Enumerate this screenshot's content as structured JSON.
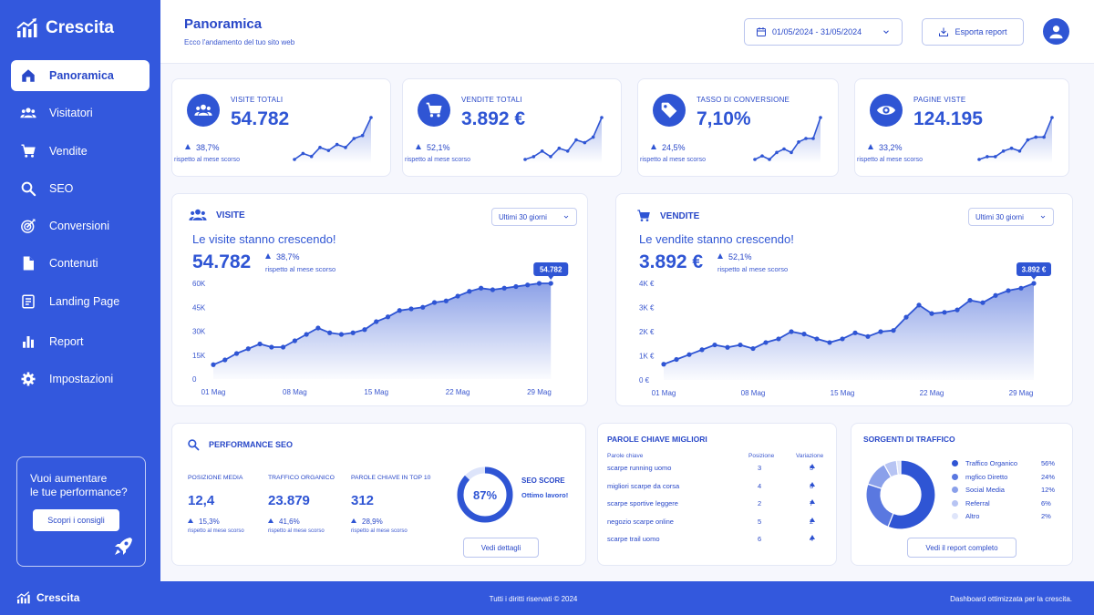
{
  "brand": {
    "name": "Crescita"
  },
  "sidebar": {
    "items": [
      {
        "label": "Panoramica",
        "icon": "home-icon",
        "active": true
      },
      {
        "label": "Visitatori",
        "icon": "users-icon"
      },
      {
        "label": "Vendite",
        "icon": "cart-icon"
      },
      {
        "label": "SEO",
        "icon": "search-icon"
      },
      {
        "label": "Conversioni",
        "icon": "target-icon"
      },
      {
        "label": "Contenuti",
        "icon": "document-icon"
      },
      {
        "label": "Landing Page",
        "icon": "page-list-icon"
      },
      {
        "label": "Report",
        "icon": "bar-chart-icon"
      },
      {
        "label": "Impostazioni",
        "icon": "gear-icon"
      }
    ],
    "promo": {
      "line1": "Vuoi aumentare",
      "line2": "le tue performance?",
      "button": "Scopri i consigli"
    }
  },
  "header": {
    "title": "Panoramica",
    "subtitle": "Ecco l'andamento del tuo sito web",
    "date_range": "01/05/2024 - 31/05/2024",
    "export": "Esporta report"
  },
  "kpis": [
    {
      "label": "VISITE TOTALI",
      "value": "54.782",
      "change": "38,7%",
      "compare": "rispetto al mese scorso",
      "icon": "users-icon",
      "trend": [
        2,
        4,
        3,
        6,
        5,
        7,
        6,
        9,
        10,
        16
      ]
    },
    {
      "label": "VENDITE TOTALI",
      "value": "3.892 €",
      "change": "52,1%",
      "compare": "rispetto al mese scorso",
      "icon": "cart-icon",
      "trend": [
        2,
        3,
        5,
        3,
        6,
        5,
        9,
        8,
        10,
        17
      ]
    },
    {
      "label": "TASSO DI CONVERSIONE",
      "value": "7,10%",
      "change": "24,5%",
      "compare": "rispetto al mese scorso",
      "icon": "tag-icon",
      "trend": [
        3,
        4,
        3,
        5,
        6,
        5,
        8,
        9,
        9,
        15
      ]
    },
    {
      "label": "PAGINE VISTE",
      "value": "124.195",
      "change": "33,2%",
      "compare": "rispetto al mese scorso",
      "icon": "eye-icon",
      "trend": [
        2,
        3,
        3,
        5,
        6,
        5,
        9,
        10,
        10,
        17
      ]
    }
  ],
  "visits": {
    "title": "VISITE",
    "range": "Ultimi 30 giorni",
    "headline": "Le visite stanno crescendo!",
    "value": "54.782",
    "change": "38,7%",
    "compare": "rispetto al mese scorso",
    "tooltip": "54.782"
  },
  "sales": {
    "title": "VENDITE",
    "range": "Ultimi 30 giorni",
    "headline": "Le vendite stanno crescendo!",
    "value": "3.892 €",
    "change": "52,1%",
    "compare": "rispetto al mese scorso",
    "tooltip": "3.892 €"
  },
  "chart_data": [
    {
      "type": "area",
      "title": "VISITE",
      "x": [
        "01 Mag",
        "02",
        "03",
        "04",
        "05",
        "06",
        "07",
        "08 Mag",
        "09",
        "10",
        "11",
        "12",
        "13",
        "14",
        "15 Mag",
        "16",
        "17",
        "18",
        "19",
        "20",
        "21",
        "22 Mag",
        "23",
        "24",
        "25",
        "26",
        "27",
        "28",
        "29 Mag",
        "30",
        "31"
      ],
      "x_ticks": [
        "01 Mag",
        "08 Mag",
        "15 Mag",
        "22 Mag",
        "29 Mag"
      ],
      "y_ticks": [
        "0",
        "15K",
        "30K",
        "45K",
        "60K"
      ],
      "ylim": [
        0,
        60000
      ],
      "values": [
        9000,
        12000,
        16000,
        19000,
        22000,
        20000,
        20000,
        24000,
        28000,
        32000,
        29000,
        28000,
        29000,
        31000,
        36000,
        39000,
        43000,
        44000,
        45000,
        48000,
        49000,
        52000,
        55000,
        57000,
        56000,
        57000,
        58000,
        59000,
        62000,
        66000,
        54782
      ],
      "last_value": 54782,
      "legend": "none",
      "grid": false
    },
    {
      "type": "area",
      "title": "VENDITE",
      "x_ticks": [
        "01 Mag",
        "08 Mag",
        "15 Mag",
        "22 Mag",
        "29 Mag"
      ],
      "y_ticks": [
        "0 €",
        "1K €",
        "2K €",
        "3K €",
        "4K €"
      ],
      "ylim": [
        0,
        4000
      ],
      "values": [
        650,
        850,
        1050,
        1250,
        1450,
        1350,
        1450,
        1300,
        1550,
        1700,
        2000,
        1900,
        1700,
        1550,
        1700,
        1950,
        1800,
        2000,
        2050,
        2600,
        3100,
        2750,
        2800,
        2900,
        3300,
        3200,
        3500,
        3700,
        3800,
        4000,
        3892
      ],
      "last_value": 3892,
      "legend": "none",
      "grid": false
    },
    {
      "type": "pie",
      "title": "SORGENTI DI TRAFFICO",
      "categories": [
        "Traffico Organico",
        "mgfico Diretto",
        "Social Media",
        "Referral",
        "Altro"
      ],
      "values": [
        56,
        24,
        12,
        6,
        2
      ],
      "colors": [
        "#2f55d4",
        "#5a78e0",
        "#8aa0ea",
        "#b7c4f3",
        "#dfe5fa"
      ],
      "legend": "right"
    }
  ],
  "seo": {
    "title": "PERFORMANCE SEO",
    "metrics": [
      {
        "label": "POSIZIONE MEDIA",
        "value": "12,4",
        "change": "15,3%",
        "compare": "rispetto al mese scorso"
      },
      {
        "label": "TRAFFICO ORGANICO",
        "value": "23.879",
        "change": "41,6%",
        "compare": "rispetto al mese scorso"
      },
      {
        "label": "PAROLE CHIAVE IN TOP 10",
        "value": "312",
        "change": "28,9%",
        "compare": "rispetto al mese scorso"
      }
    ],
    "score": "87%",
    "score_value": 87,
    "score_label": "SEO SCORE",
    "score_note": "Ottimo lavoro!",
    "details": "Vedi dettagli"
  },
  "keywords": {
    "title": "PAROLE CHIAVE MIGLIORI",
    "headers": {
      "keyword": "Parole chiave",
      "position": "Posizione",
      "change": "Variazione"
    },
    "rows": [
      {
        "keyword": "scarpe running uomo",
        "position": "3",
        "change": "5"
      },
      {
        "keyword": "migliori scarpe da corsa",
        "position": "4",
        "change": "3"
      },
      {
        "keyword": "scarpe sportive leggere",
        "position": "2",
        "change": "7"
      },
      {
        "keyword": "negozio scarpe online",
        "position": "5",
        "change": "2"
      },
      {
        "keyword": "scarpe trail uomo",
        "position": "6",
        "change": "4"
      }
    ]
  },
  "traffic": {
    "title": "SORGENTI DI TRAFFICO",
    "items": [
      {
        "label": "Traffico Organico",
        "pct": "56%",
        "color": "#2f55d4"
      },
      {
        "label": "mgfico Diretto",
        "pct": "24%",
        "color": "#5a78e0"
      },
      {
        "label": "Social Media",
        "pct": "12%",
        "color": "#8aa0ea"
      },
      {
        "label": "Referral",
        "pct": "6%",
        "color": "#b7c4f3"
      },
      {
        "label": "Altro",
        "pct": "2%",
        "color": "#dfe5fa"
      }
    ],
    "button": "Vedi il report completo"
  },
  "footer": {
    "brand": "Crescita",
    "center": "Tutti i diritti riservati © 2024",
    "right": "Dashboard ottimizzata per la crescita."
  }
}
